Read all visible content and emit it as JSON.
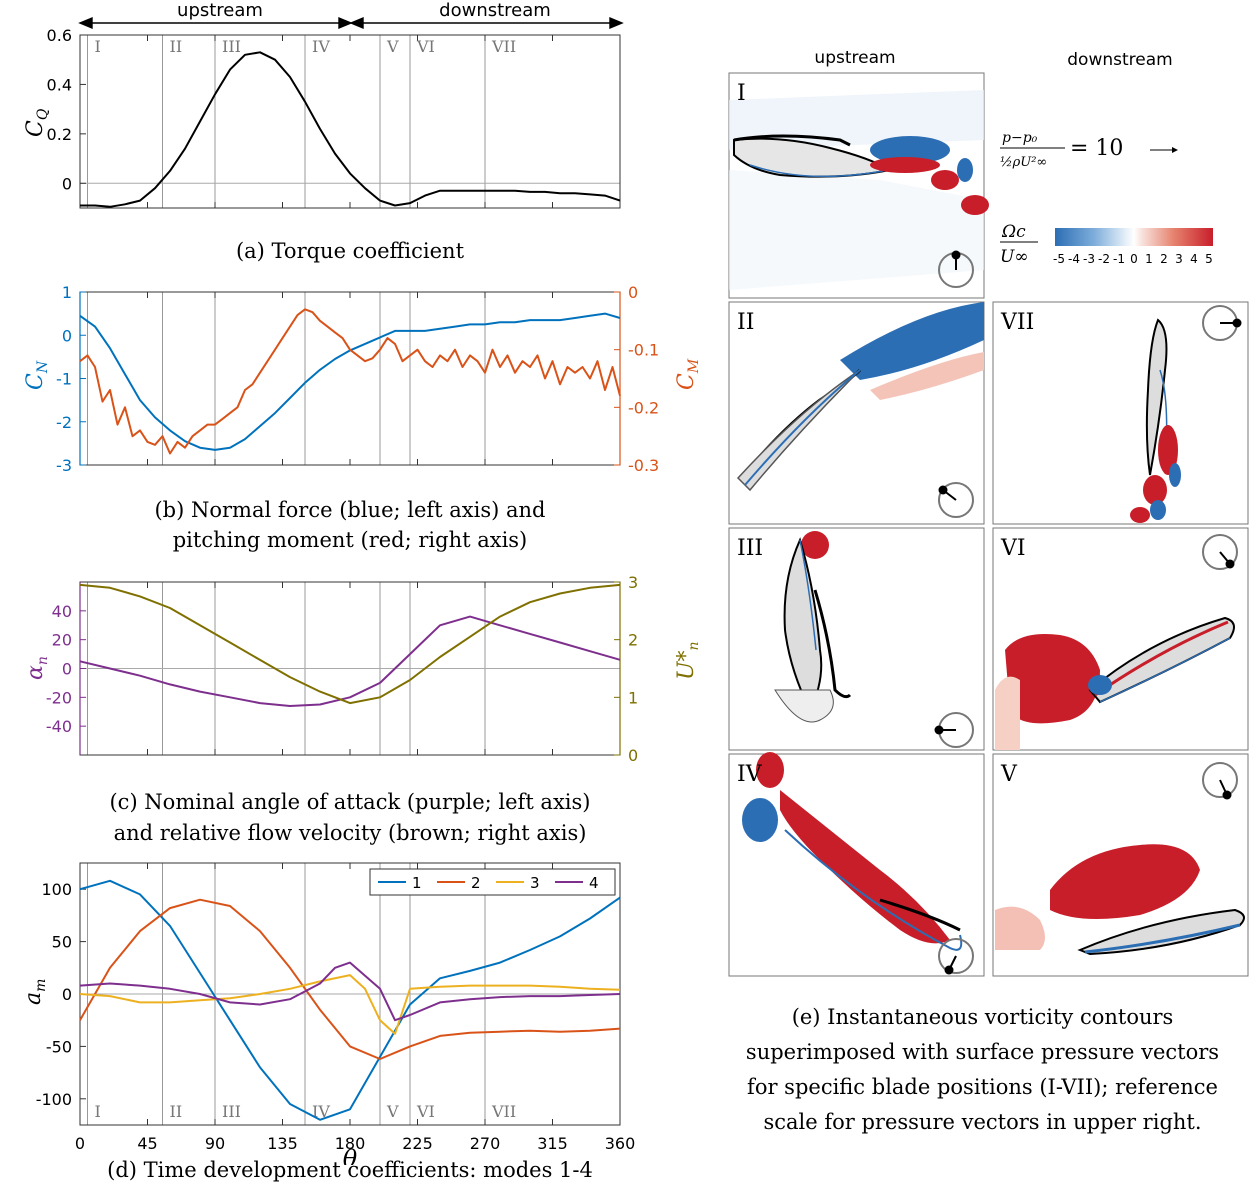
{
  "header": {
    "upstream": "upstream",
    "downstream": "downstream"
  },
  "positions": [
    "I",
    "II",
    "III",
    "IV",
    "V",
    "VI",
    "VII"
  ],
  "position_theta": [
    5,
    55,
    90,
    150,
    200,
    220,
    270
  ],
  "colors": {
    "blue": "#0072BD",
    "red": "#D95319",
    "yellow": "#EDB120",
    "purple": "#7E2F8E",
    "brown": "#7F7000",
    "vortex_red": "#C81E2A",
    "vortex_blue": "#2C6EB4"
  },
  "captions": {
    "a": "(a) Torque coefficient",
    "b1": "(b) Normal force (blue; left axis) and",
    "b2": "pitching moment (red; right axis)",
    "c1": "(c) Nominal angle of attack (purple; left axis)",
    "c2": "and relative flow velocity (brown; right axis)",
    "d": "(d) Time development coefficients: modes 1-4",
    "e1": "(e) Instantaneous vorticity contours",
    "e2": "superimposed with surface pressure vectors",
    "e3": "for specific blade positions (I-VII); reference",
    "e4": "scale for pressure vectors in upper right."
  },
  "panel_e": {
    "col_upstream": "upstream",
    "col_downstream": "downstream",
    "pressure_eq_value": "= 10",
    "colorbar_ticks": [
      "-5",
      "-4",
      "-3",
      "-2",
      "-1",
      "0",
      "1",
      "2",
      "3",
      "4",
      "5"
    ],
    "labels": {
      "I": "I",
      "II": "II",
      "III": "III",
      "IV": "IV",
      "V": "V",
      "VI": "VI",
      "VII": "VII"
    }
  },
  "chart_data": [
    {
      "type": "line",
      "ylabel": "C_Q",
      "xlim": [
        0,
        360
      ],
      "ylim": [
        -0.1,
        0.6
      ],
      "yticks": [
        "0",
        "0.2",
        "0.4",
        "0.6"
      ],
      "series": [
        {
          "x": [
            0,
            10,
            20,
            30,
            40,
            50,
            60,
            70,
            80,
            90,
            100,
            110,
            120,
            130,
            140,
            150,
            160,
            170,
            180,
            190,
            200,
            210,
            220,
            230,
            240,
            250,
            260,
            270,
            280,
            290,
            300,
            310,
            320,
            330,
            340,
            350,
            360
          ],
          "y": [
            -0.09,
            -0.09,
            -0.095,
            -0.085,
            -0.07,
            -0.02,
            0.05,
            0.14,
            0.25,
            0.36,
            0.46,
            0.52,
            0.53,
            0.5,
            0.43,
            0.33,
            0.22,
            0.12,
            0.04,
            -0.02,
            -0.07,
            -0.09,
            -0.08,
            -0.05,
            -0.03,
            -0.03,
            -0.03,
            -0.03,
            -0.03,
            -0.03,
            -0.035,
            -0.035,
            -0.04,
            -0.04,
            -0.045,
            -0.05,
            -0.07
          ]
        }
      ]
    },
    {
      "type": "line",
      "ylabel": "C_N",
      "ylabel_right": "C_M",
      "xlim": [
        0,
        360
      ],
      "ylim": [
        -3,
        1
      ],
      "ylim_right": [
        -0.3,
        0
      ],
      "yticks": [
        "1",
        "0",
        "-1",
        "-2",
        "-3"
      ],
      "yticks_right": [
        "0",
        "-0.1",
        "-0.2",
        "-0.3"
      ],
      "series": [
        {
          "axis": "left",
          "x": [
            0,
            10,
            20,
            30,
            40,
            50,
            60,
            70,
            80,
            90,
            100,
            110,
            120,
            130,
            140,
            150,
            160,
            170,
            180,
            190,
            200,
            210,
            220,
            230,
            240,
            250,
            260,
            270,
            280,
            290,
            300,
            310,
            320,
            330,
            340,
            350,
            360
          ],
          "y": [
            0.45,
            0.2,
            -0.3,
            -0.9,
            -1.5,
            -1.9,
            -2.2,
            -2.45,
            -2.6,
            -2.65,
            -2.6,
            -2.4,
            -2.1,
            -1.8,
            -1.45,
            -1.1,
            -0.8,
            -0.55,
            -0.35,
            -0.2,
            -0.05,
            0.1,
            0.1,
            0.1,
            0.15,
            0.2,
            0.25,
            0.25,
            0.3,
            0.3,
            0.35,
            0.35,
            0.35,
            0.4,
            0.45,
            0.5,
            0.4
          ]
        },
        {
          "axis": "right",
          "x": [
            0,
            5,
            10,
            15,
            20,
            25,
            30,
            35,
            40,
            45,
            50,
            55,
            60,
            65,
            70,
            75,
            80,
            85,
            90,
            95,
            100,
            105,
            110,
            115,
            120,
            125,
            130,
            135,
            140,
            145,
            150,
            155,
            160,
            165,
            170,
            175,
            180,
            185,
            190,
            195,
            200,
            205,
            210,
            215,
            220,
            225,
            230,
            235,
            240,
            245,
            250,
            255,
            260,
            265,
            270,
            275,
            280,
            285,
            290,
            295,
            300,
            305,
            310,
            315,
            320,
            325,
            330,
            335,
            340,
            345,
            350,
            355,
            360
          ],
          "y": [
            -0.12,
            -0.11,
            -0.13,
            -0.19,
            -0.17,
            -0.23,
            -0.2,
            -0.25,
            -0.24,
            -0.26,
            -0.265,
            -0.25,
            -0.28,
            -0.26,
            -0.27,
            -0.25,
            -0.24,
            -0.23,
            -0.23,
            -0.22,
            -0.21,
            -0.2,
            -0.17,
            -0.16,
            -0.14,
            -0.12,
            -0.1,
            -0.08,
            -0.06,
            -0.04,
            -0.03,
            -0.035,
            -0.05,
            -0.06,
            -0.07,
            -0.08,
            -0.1,
            -0.11,
            -0.12,
            -0.115,
            -0.1,
            -0.08,
            -0.09,
            -0.12,
            -0.11,
            -0.1,
            -0.12,
            -0.13,
            -0.11,
            -0.12,
            -0.1,
            -0.13,
            -0.11,
            -0.12,
            -0.14,
            -0.1,
            -0.13,
            -0.11,
            -0.14,
            -0.12,
            -0.13,
            -0.11,
            -0.15,
            -0.12,
            -0.16,
            -0.13,
            -0.14,
            -0.13,
            -0.15,
            -0.12,
            -0.17,
            -0.13,
            -0.18
          ]
        }
      ]
    },
    {
      "type": "line",
      "ylabel": "α_n",
      "ylabel_right": "U*_n",
      "xlim": [
        0,
        360
      ],
      "ylim": [
        -60,
        60
      ],
      "ylim_right": [
        0,
        3
      ],
      "yticks": [
        "40",
        "20",
        "0",
        "-20",
        "-40"
      ],
      "yticks_right": [
        "3",
        "2",
        "1",
        "0"
      ],
      "series": [
        {
          "axis": "left",
          "x": [
            0,
            20,
            40,
            60,
            80,
            100,
            120,
            140,
            160,
            180,
            200,
            220,
            240,
            260,
            280,
            300,
            320,
            340,
            360
          ],
          "y": [
            5,
            0,
            -5,
            -11,
            -16,
            -20,
            -24,
            -26,
            -25,
            -20,
            -10,
            10,
            30,
            36,
            30,
            24,
            18,
            12,
            6
          ]
        },
        {
          "axis": "right",
          "x": [
            0,
            20,
            40,
            60,
            80,
            100,
            120,
            140,
            160,
            180,
            200,
            220,
            240,
            260,
            280,
            300,
            320,
            340,
            360
          ],
          "y": [
            2.95,
            2.9,
            2.75,
            2.55,
            2.25,
            1.95,
            1.65,
            1.35,
            1.1,
            0.9,
            1.0,
            1.3,
            1.7,
            2.05,
            2.4,
            2.65,
            2.8,
            2.9,
            2.95
          ]
        }
      ]
    },
    {
      "type": "line",
      "ylabel": "a_m",
      "xlabel": "θ",
      "xlim": [
        0,
        360
      ],
      "ylim": [
        -125,
        125
      ],
      "xticks": [
        "0",
        "45",
        "90",
        "135",
        "180",
        "225",
        "270",
        "315",
        "360"
      ],
      "yticks": [
        "100",
        "50",
        "0",
        "-50",
        "-100"
      ],
      "legend": [
        "1",
        "2",
        "3",
        "4"
      ],
      "series": [
        {
          "name": "1",
          "x": [
            0,
            20,
            40,
            60,
            80,
            100,
            120,
            140,
            160,
            180,
            200,
            220,
            240,
            260,
            280,
            300,
            320,
            340,
            360
          ],
          "y": [
            100,
            108,
            95,
            65,
            20,
            -25,
            -70,
            -105,
            -120,
            -110,
            -60,
            -10,
            15,
            22,
            30,
            42,
            55,
            72,
            92
          ]
        },
        {
          "name": "2",
          "x": [
            0,
            20,
            40,
            60,
            80,
            100,
            120,
            140,
            160,
            180,
            200,
            220,
            240,
            260,
            280,
            300,
            320,
            340,
            360
          ],
          "y": [
            -25,
            25,
            60,
            82,
            90,
            84,
            60,
            25,
            -15,
            -50,
            -62,
            -50,
            -40,
            -37,
            -36,
            -35,
            -36,
            -35,
            -33
          ]
        },
        {
          "name": "3",
          "x": [
            0,
            20,
            40,
            60,
            80,
            100,
            120,
            140,
            160,
            180,
            190,
            200,
            210,
            220,
            240,
            260,
            280,
            300,
            320,
            340,
            360
          ],
          "y": [
            0,
            -2,
            -8,
            -8,
            -6,
            -4,
            0,
            5,
            12,
            18,
            5,
            -25,
            -38,
            5,
            7,
            8,
            8,
            8,
            7,
            5,
            4
          ]
        },
        {
          "name": "4",
          "x": [
            0,
            20,
            40,
            60,
            80,
            100,
            120,
            140,
            160,
            170,
            180,
            200,
            210,
            220,
            240,
            260,
            280,
            300,
            320,
            340,
            360
          ],
          "y": [
            8,
            10,
            8,
            5,
            0,
            -8,
            -10,
            -5,
            10,
            25,
            30,
            5,
            -25,
            -20,
            -8,
            -5,
            -3,
            -2,
            -2,
            -1,
            0
          ]
        }
      ]
    }
  ]
}
